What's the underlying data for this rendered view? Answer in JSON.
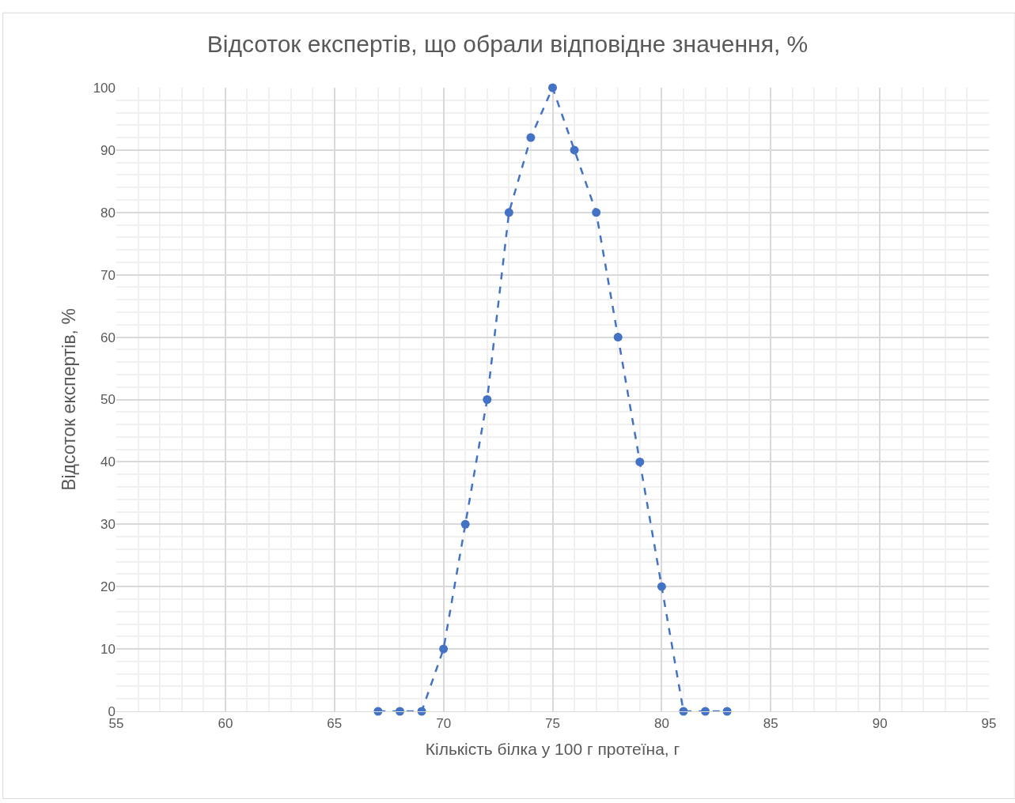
{
  "chart_data": {
    "type": "line",
    "title": "Відсоток експертів, що обрали відповідне значення, %",
    "xlabel": "Кількість білка у 100 г протеїна, г",
    "ylabel": "Відсоток експертів, %",
    "x": [
      67,
      68,
      69,
      70,
      71,
      72,
      73,
      74,
      75,
      76,
      77,
      78,
      79,
      80,
      81,
      82,
      83
    ],
    "series": [
      {
        "color": "#4472c4",
        "values": [
          0,
          0,
          0,
          10,
          30,
          50,
          80,
          92,
          100,
          90,
          80,
          60,
          40,
          20,
          0,
          0,
          0
        ]
      }
    ],
    "xlim": [
      55,
      95
    ],
    "xticks": [
      55,
      60,
      65,
      70,
      75,
      80,
      85,
      90,
      95
    ],
    "ylim": [
      0,
      100
    ],
    "yticks": [
      0,
      10,
      20,
      30,
      40,
      50,
      60,
      70,
      80,
      90,
      100
    ],
    "grid": true,
    "marker": "circle",
    "line_style": "dashed"
  }
}
